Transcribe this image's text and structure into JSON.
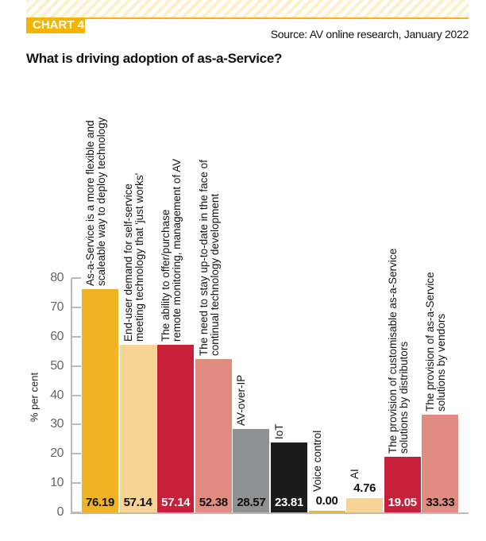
{
  "header": {
    "badge": "CHART 4",
    "source": "Source: AV online research, January 2022"
  },
  "chart_data": {
    "type": "bar",
    "title": "What is driving adoption of as-a-Service?",
    "ylabel": "% per cent",
    "xlabel": "",
    "ylim": [
      0,
      80
    ],
    "yticks": [
      "0",
      "10",
      "20",
      "30",
      "40",
      "50",
      "60",
      "70",
      "80"
    ],
    "grid": false,
    "categories": [
      [
        "As-a-Service is a more flexible and",
        "scaleable way to deploy technology"
      ],
      [
        "End-user demand for self-service",
        "meeting technology that 'just works'"
      ],
      [
        "The ability to offer/purchase",
        "remote monitoring, management of AV"
      ],
      [
        "The need to stay up-to-date in the face of",
        "continual technology development"
      ],
      [
        "AV-over-IP"
      ],
      [
        "IoT"
      ],
      [
        "Voice control"
      ],
      [
        "AI"
      ],
      [
        "The provision of customisable as-a-Service",
        "solutions by distributors"
      ],
      [
        "The provision of as-a-Service",
        "solutions by vendors"
      ]
    ],
    "values": [
      76.19,
      57.14,
      57.14,
      52.38,
      28.57,
      23.81,
      0.0,
      4.76,
      19.05,
      33.33
    ],
    "value_labels": [
      "76.19",
      "57.14",
      "57.14",
      "52.38",
      "28.57",
      "23.81",
      "0.00",
      "4.76",
      "19.05",
      "33.33"
    ],
    "colors": [
      "#F0B323",
      "#F7D394",
      "#C8203A",
      "#E08C80",
      "#8E9091",
      "#1C1C1C",
      "#F0B323",
      "#F7D394",
      "#C8203A",
      "#E08C80"
    ],
    "label_colors": [
      "#111",
      "#111",
      "#fff",
      "#111",
      "#111",
      "#fff",
      "#111",
      "#111",
      "#fff",
      "#111"
    ]
  }
}
